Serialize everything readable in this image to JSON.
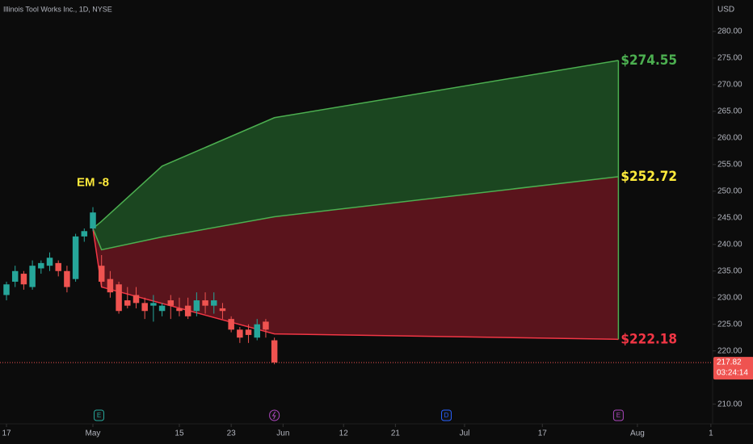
{
  "chart_data": {
    "type": "candlestick",
    "title": "Illinois Tool Works Inc., 1D, NYSE",
    "currency": "USD",
    "up_color": "#26a69a",
    "down_color": "#ef5350",
    "x": [
      0,
      1,
      2,
      3,
      4,
      5,
      6,
      7,
      8,
      9,
      10,
      11,
      12,
      13,
      14,
      15,
      16,
      17,
      18,
      19,
      20,
      21,
      22,
      23,
      24,
      25,
      26,
      27,
      28,
      29,
      30,
      31
    ],
    "open": [
      230.5,
      233,
      234.5,
      232,
      235.5,
      236,
      236.5,
      235,
      233.5,
      241.5,
      243,
      236,
      233.5,
      232.5,
      229.5,
      230.5,
      229,
      228.5,
      227.5,
      229.5,
      228,
      228.5,
      227.5,
      229.5,
      228.5,
      228,
      226,
      224,
      224,
      222.5,
      225.5,
      222
    ],
    "close": [
      232.5,
      235,
      232.5,
      236,
      236.5,
      237.5,
      235,
      232,
      241.5,
      242.5,
      246,
      233,
      231,
      227.5,
      228.5,
      229,
      227.5,
      229,
      228.5,
      228.5,
      227.5,
      226.5,
      229.5,
      228.5,
      229.5,
      227.5,
      224,
      222.5,
      223,
      225,
      224,
      217.82
    ],
    "high": [
      233,
      236,
      235,
      237,
      237,
      238.5,
      237,
      236,
      242,
      243,
      247,
      238,
      235,
      233,
      232,
      232,
      230,
      230.5,
      229,
      230.5,
      230,
      230,
      231,
      231,
      231,
      229,
      226.5,
      224.5,
      225,
      226,
      226,
      222.5
    ],
    "low": [
      229.5,
      232,
      231.5,
      231.5,
      234.5,
      235,
      234,
      231,
      233,
      240.5,
      242.5,
      232,
      230,
      227,
      228,
      228,
      226,
      225.5,
      226.5,
      226,
      226.5,
      226,
      226.5,
      227,
      227,
      226,
      223.5,
      221.5,
      221.5,
      222,
      222.5,
      217.5
    ],
    "levels": [
      {
        "x": [
          10,
          10.9,
          18,
          31,
          70.8
        ],
        "values": [
          243,
          244.2,
          254.7,
          263.8,
          274.55
        ],
        "color": "#4caf50",
        "label": "$274.55"
      },
      {
        "x": [
          10,
          11,
          18,
          31,
          70.8
        ],
        "values": [
          243,
          239,
          241.4,
          245.2,
          252.72
        ],
        "color": "#ffeb3b",
        "line_color": "#4caf50",
        "label": "$252.72"
      },
      {
        "x": [
          10,
          11,
          31,
          70.8
        ],
        "values": [
          243,
          232,
          223.2,
          222.18
        ],
        "color": "#f23645",
        "label": "$222.18"
      }
    ],
    "upper_fill": "#1b4620",
    "lower_fill": "#5a141c",
    "annotation": "EM -8",
    "last_price": 217.82,
    "countdown": "03:24:14",
    "events": [
      {
        "label": "E",
        "x": 10.7,
        "color": "#26a69a"
      },
      {
        "label": "",
        "x": 31,
        "color": "#ab47bc"
      },
      {
        "label": "D",
        "x": 50.9,
        "color": "#2962ff"
      },
      {
        "label": "E",
        "x": 70.8,
        "color": "#ab47bc"
      }
    ],
    "xlim": [
      -0.75,
      81.7
    ],
    "xticks": [
      {
        "value": 0,
        "label": "17"
      },
      {
        "value": 10,
        "label": "May"
      },
      {
        "value": 20,
        "label": "15"
      },
      {
        "value": 26,
        "label": "23"
      },
      {
        "value": 32,
        "label": "Jun"
      },
      {
        "value": 39,
        "label": "12"
      },
      {
        "value": 45,
        "label": "21"
      },
      {
        "value": 53,
        "label": "Jul"
      },
      {
        "value": 62,
        "label": "17"
      },
      {
        "value": 73,
        "label": "Aug"
      },
      {
        "value": 81.5,
        "label": "1"
      }
    ],
    "ylim": [
      205.1,
      285.9
    ],
    "yticks": [
      {
        "value": 280,
        "label": "280.00"
      },
      {
        "value": 275,
        "label": "275.00"
      },
      {
        "value": 270,
        "label": "270.00"
      },
      {
        "value": 265,
        "label": "265.00"
      },
      {
        "value": 260,
        "label": "260.00"
      },
      {
        "value": 255,
        "label": "255.00"
      },
      {
        "value": 250,
        "label": "250.00"
      },
      {
        "value": 245,
        "label": "245.00"
      },
      {
        "value": 240,
        "label": "240.00"
      },
      {
        "value": 235,
        "label": "235.00"
      },
      {
        "value": 230,
        "label": "230.00"
      },
      {
        "value": 225,
        "label": "225.00"
      },
      {
        "value": 220,
        "label": "220.00"
      },
      {
        "value": 210,
        "label": "210.00"
      }
    ]
  }
}
